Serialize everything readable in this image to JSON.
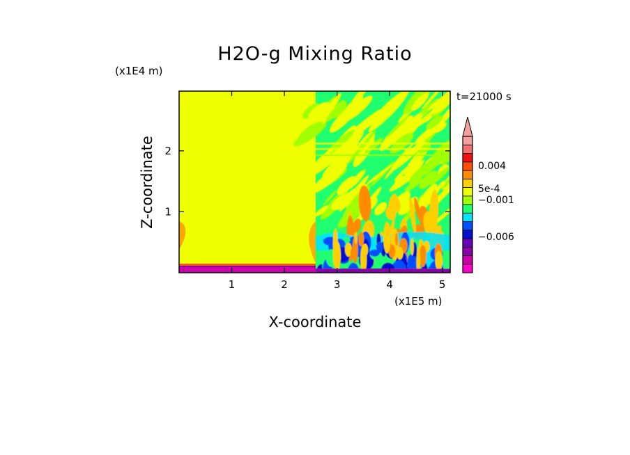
{
  "chart_data": {
    "type": "heatmap",
    "title": "H2O-g Mixing Ratio",
    "xlabel": "X-coordinate",
    "ylabel": "Z-coordinate",
    "x_unit": "(x1E5 m)",
    "y_unit": "(x1E4 m)",
    "time_label": "t=21000 s",
    "xlim": [
      0,
      5.15
    ],
    "ylim": [
      0,
      2.98
    ],
    "x_ticks": [
      "1",
      "2",
      "3",
      "4",
      "5"
    ],
    "y_ticks": [
      "1",
      "2"
    ],
    "grid": false,
    "colorbar": {
      "labels": [
        "0.004",
        "5e-4",
        "−0.001",
        "−0.006"
      ],
      "colors": [
        "#ff00c8",
        "#cc00aa",
        "#8800aa",
        "#6a00b8",
        "#0010d0",
        "#0050ff",
        "#00e2ff",
        "#20ff70",
        "#a0ff00",
        "#f0ff00",
        "#ffd000",
        "#ff8c00",
        "#ff5000",
        "#f01010",
        "#f07070",
        "#f4a0a0"
      ],
      "extend": "max"
    },
    "field": {
      "left_background": "#f0ff00",
      "left_boundary_layer_colors": [
        "#8800aa",
        "#ff5000"
      ],
      "right_colors": [
        "#20ff70",
        "#f0ff00",
        "#a0ff00",
        "#ffd000",
        "#ff8c00",
        "#00e2ff",
        "#0050ff",
        "#0010d0",
        "#8800aa"
      ]
    }
  }
}
